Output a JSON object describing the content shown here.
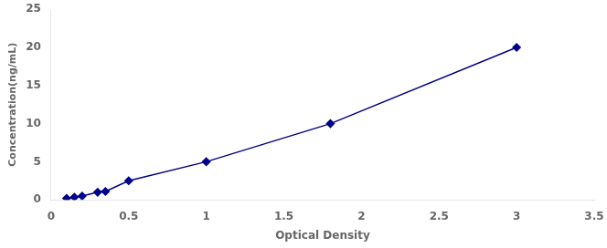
{
  "chart_data": {
    "type": "line",
    "x": [
      0.1,
      0.15,
      0.2,
      0.3,
      0.35,
      0.5,
      1.0,
      1.8,
      3.0
    ],
    "values": [
      0.2,
      0.35,
      0.5,
      1.0,
      1.1,
      2.5,
      5.0,
      10.0,
      20.0
    ],
    "xlabel": "Optical Density",
    "ylabel": "Concentration(ng/mL)",
    "xlim": [
      0,
      3.5
    ],
    "ylim": [
      0,
      25
    ],
    "xticks": [
      0,
      0.5,
      1,
      1.5,
      2,
      2.5,
      3,
      3.5
    ],
    "yticks": [
      0,
      5,
      10,
      15,
      20,
      25
    ],
    "color": "#00008B",
    "marker": "diamond",
    "grid": false
  }
}
